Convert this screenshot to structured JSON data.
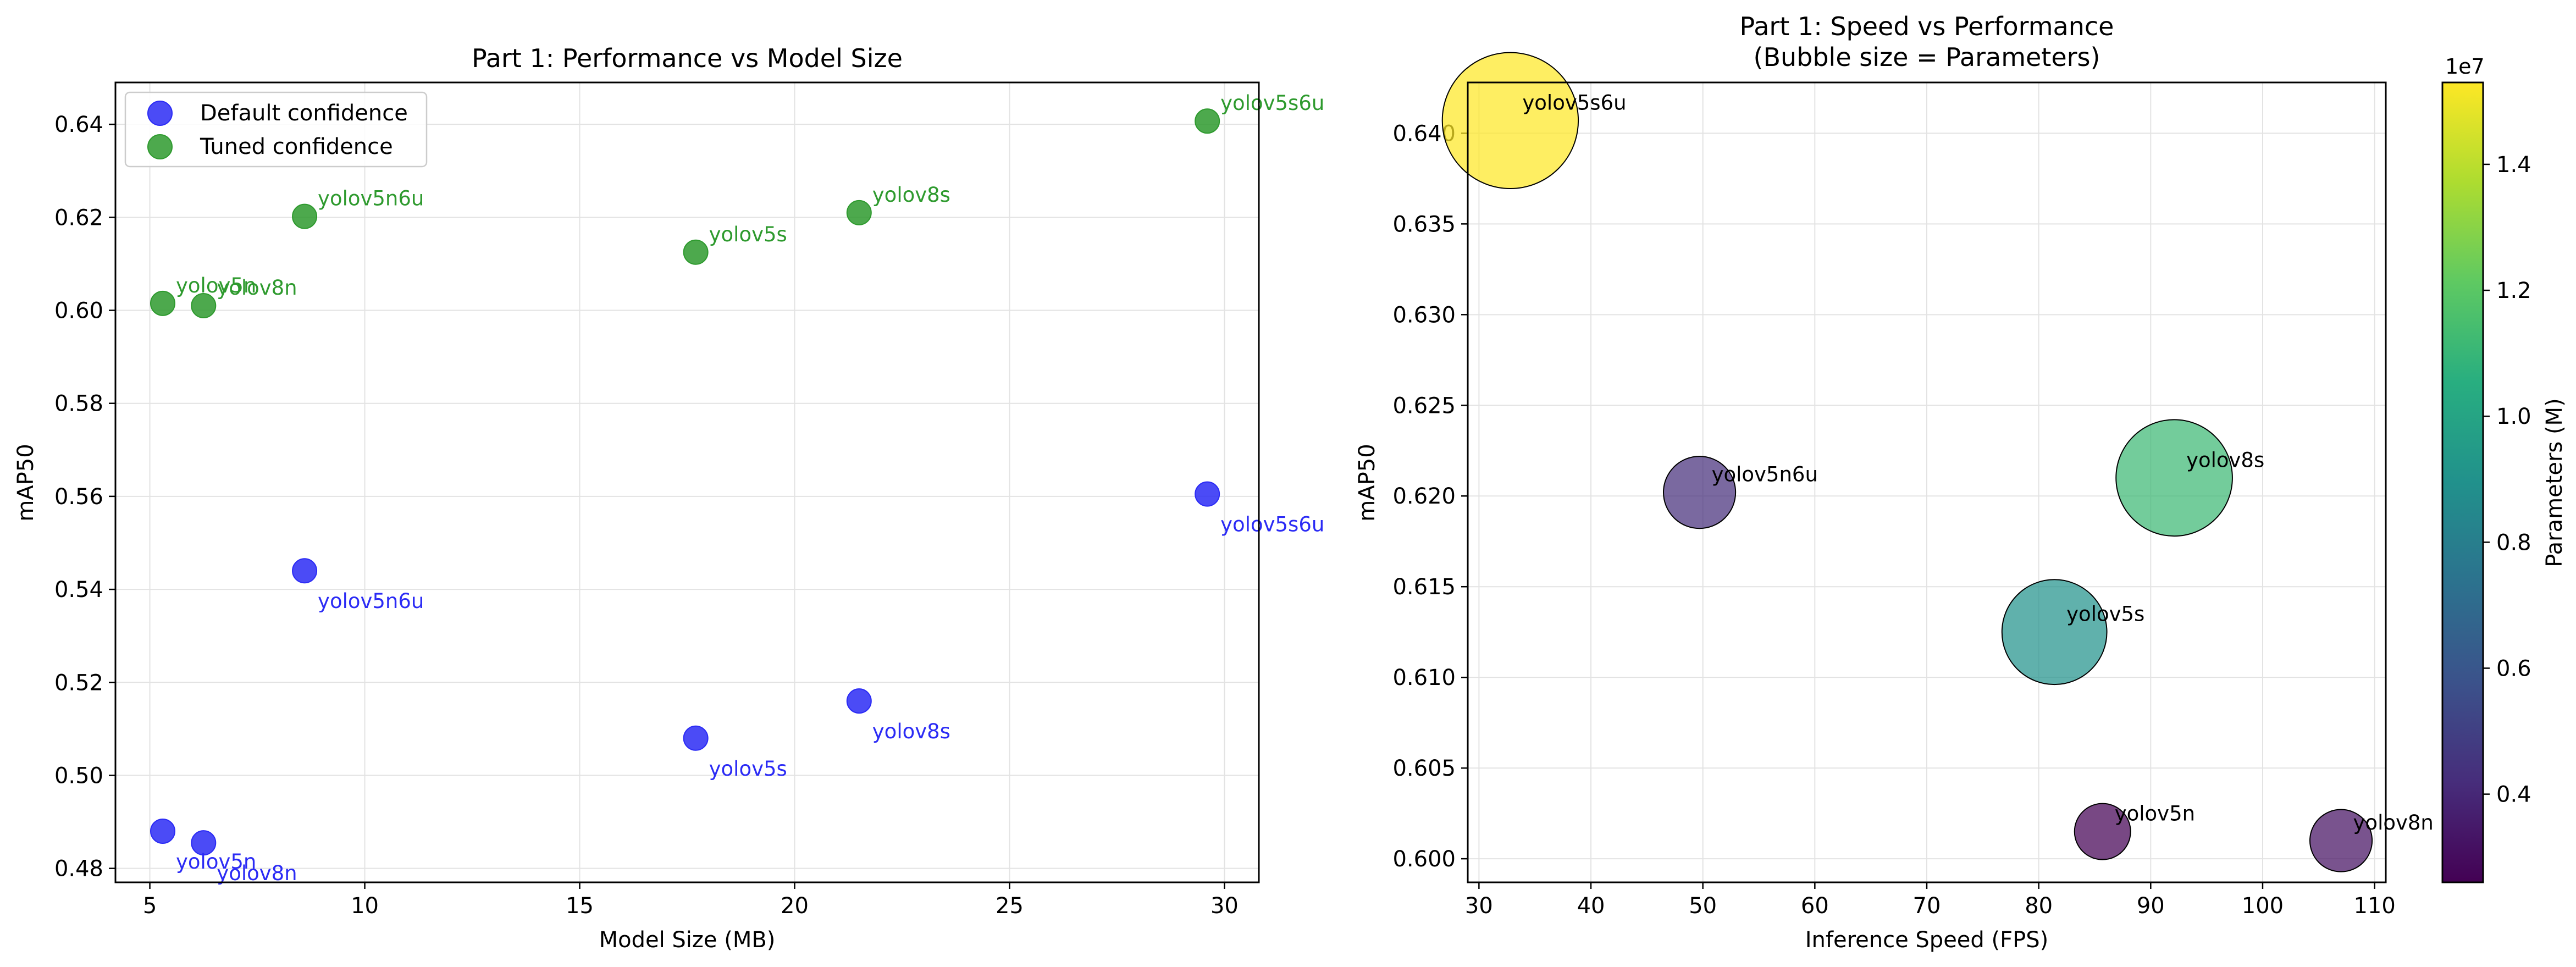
{
  "chart_data": [
    {
      "type": "scatter",
      "title": "Part 1: Performance vs Model Size",
      "xlabel": "Model Size (MB)",
      "ylabel": "mAP50",
      "xlim": [
        4.2,
        30.8
      ],
      "ylim": [
        0.477,
        0.649
      ],
      "xticks": [
        5,
        10,
        15,
        20,
        25,
        30
      ],
      "yticks": [
        0.48,
        0.5,
        0.52,
        0.54,
        0.56,
        0.58,
        0.6,
        0.62,
        0.64
      ],
      "tick_decimals": 2,
      "grid": true,
      "legend_position": "top-left",
      "series": [
        {
          "name": "Default confidence",
          "color": "#2b2bf5",
          "label_offset": "below-right",
          "points": [
            {
              "label": "yolov5n",
              "x": 5.3,
              "y": 0.488
            },
            {
              "label": "yolov8n",
              "x": 6.25,
              "y": 0.4855
            },
            {
              "label": "yolov5n6u",
              "x": 8.6,
              "y": 0.544
            },
            {
              "label": "yolov5s",
              "x": 17.7,
              "y": 0.508
            },
            {
              "label": "yolov8s",
              "x": 21.5,
              "y": 0.516
            },
            {
              "label": "yolov5s6u",
              "x": 29.6,
              "y": 0.5605
            }
          ]
        },
        {
          "name": "Tuned confidence",
          "color": "#2e9a2e",
          "label_offset": "above-right",
          "points": [
            {
              "label": "yolov5n",
              "x": 5.3,
              "y": 0.6015
            },
            {
              "label": "yolov8n",
              "x": 6.25,
              "y": 0.601
            },
            {
              "label": "yolov5n6u",
              "x": 8.6,
              "y": 0.6202
            },
            {
              "label": "yolov5s",
              "x": 17.7,
              "y": 0.6125
            },
            {
              "label": "yolov8s",
              "x": 21.5,
              "y": 0.621
            },
            {
              "label": "yolov5s6u",
              "x": 29.6,
              "y": 0.6407
            }
          ]
        }
      ]
    },
    {
      "type": "bubble",
      "title": "Part 1: Speed vs Performance",
      "subtitle": "(Bubble size = Parameters)",
      "xlabel": "Inference Speed (FPS)",
      "ylabel": "mAP50",
      "xlim": [
        29,
        111
      ],
      "ylim": [
        0.5987,
        0.6428
      ],
      "xticks": [
        30,
        40,
        50,
        60,
        70,
        80,
        90,
        100,
        110
      ],
      "yticks": [
        0.6,
        0.605,
        0.61,
        0.615,
        0.62,
        0.625,
        0.63,
        0.635,
        0.64
      ],
      "tick_decimals": 3,
      "grid": true,
      "colormap": "viridis",
      "colorbar": {
        "label": "Parameters (M)",
        "multiplier": "1e7",
        "min": 2.6,
        "max": 15.3,
        "ticks": [
          0.4,
          0.6,
          0.8,
          1.0,
          1.2,
          1.4
        ],
        "tick_scale": 10
      },
      "points": [
        {
          "label": "yolov5s6u",
          "x": 32.8,
          "y": 0.6407,
          "params_m": 15.3
        },
        {
          "label": "yolov5n6u",
          "x": 49.7,
          "y": 0.6202,
          "params_m": 4.3
        },
        {
          "label": "yolov8s",
          "x": 92.1,
          "y": 0.621,
          "params_m": 11.2
        },
        {
          "label": "yolov5s",
          "x": 81.4,
          "y": 0.6125,
          "params_m": 9.1
        },
        {
          "label": "yolov5n",
          "x": 85.7,
          "y": 0.6015,
          "params_m": 2.6
        },
        {
          "label": "yolov8n",
          "x": 107.0,
          "y": 0.601,
          "params_m": 3.2
        }
      ]
    }
  ]
}
